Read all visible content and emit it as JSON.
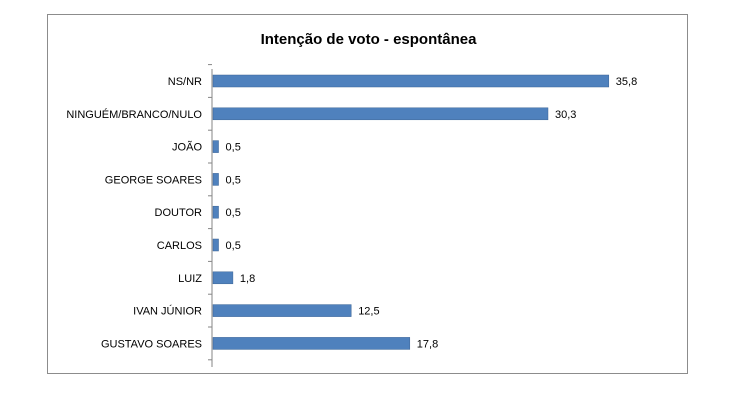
{
  "chart_data": {
    "type": "bar",
    "orientation": "horizontal",
    "title": "Intenção de voto - espontânea",
    "categories": [
      "NS/NR",
      "NINGUÉM/BRANCO/NULO",
      "JOÃO",
      "GEORGE SOARES",
      "DOUTOR",
      "CARLOS",
      "LUIZ",
      "IVAN JÚNIOR",
      "GUSTAVO SOARES"
    ],
    "values": [
      35.8,
      30.3,
      0.5,
      0.5,
      0.5,
      0.5,
      1.8,
      12.5,
      17.8
    ],
    "value_labels": [
      "35,8",
      "30,3",
      "0,5",
      "0,5",
      "0,5",
      "0,5",
      "1,8",
      "12,5",
      "17,8"
    ],
    "xlim": [
      0,
      36
    ],
    "grid": false,
    "legend": "none",
    "bar_color": "#4f81bd"
  }
}
